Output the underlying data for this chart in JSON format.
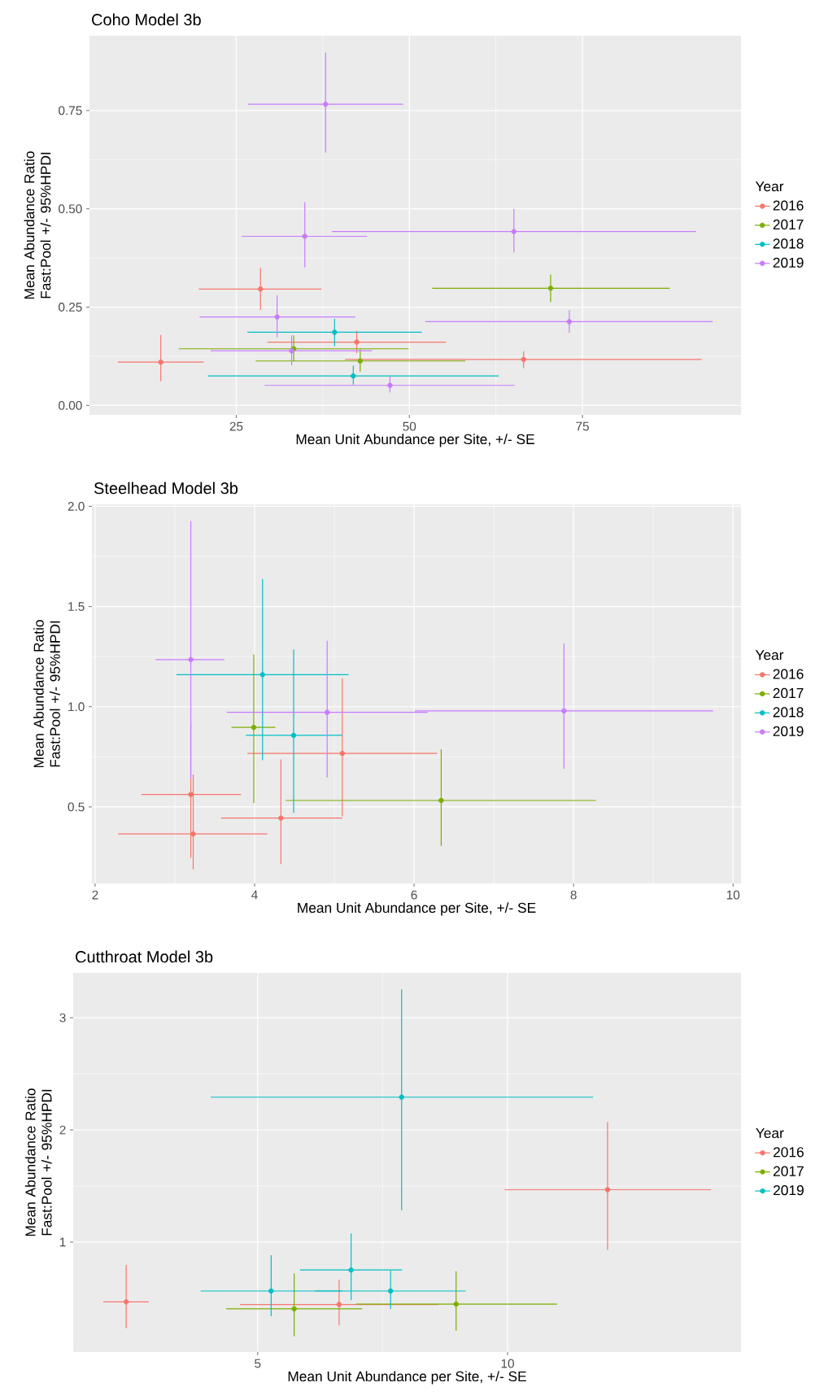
{
  "chart_data": [
    {
      "type": "scatter",
      "title": "Coho Model 3b",
      "xlabel": "Mean Unit Abundance per Site, +/- SE",
      "ylabel": "Mean Abundance Ratio Fast:Pool +/- 95%HPDI",
      "legend_title": "Year",
      "legend": "right",
      "grid": true,
      "marker": "circle",
      "xlim": [
        3.8,
        97.9
      ],
      "ylim": [
        -0.024,
        0.94
      ],
      "xticks": [
        25,
        50,
        75
      ],
      "yticks": [
        {
          "value": 0,
          "label": "0.00"
        },
        {
          "value": 0.25,
          "label": "0.25"
        },
        {
          "value": 0.5,
          "label": "0.50"
        },
        {
          "value": 0.75,
          "label": "0.75"
        }
      ],
      "series": [
        {
          "name": "2016",
          "color": "#f8766d",
          "x": [
            14.1,
            28.5,
            42.4,
            66.5
          ],
          "values": [
            0.11,
            0.296,
            0.161,
            0.117
          ],
          "xerrors": [
            [
              7.9,
              20.3
            ],
            [
              19.6,
              37.3
            ],
            [
              29.5,
              55.3
            ],
            [
              40.7,
              92.2
            ]
          ],
          "errors": [
            [
              0.062,
              0.179
            ],
            [
              0.243,
              0.35
            ],
            [
              0.133,
              0.19
            ],
            [
              0.095,
              0.138
            ]
          ]
        },
        {
          "name": "2017",
          "color": "#7cae00",
          "x": [
            70.4,
            33.3,
            42.9
          ],
          "values": [
            0.298,
            0.144,
            0.113
          ],
          "xerrors": [
            [
              53.3,
              87.6
            ],
            [
              16.7,
              49.9
            ],
            [
              27.8,
              58.1
            ]
          ],
          "errors": [
            [
              0.263,
              0.333
            ],
            [
              0.112,
              0.178
            ],
            [
              0.086,
              0.143
            ]
          ]
        },
        {
          "name": "2018",
          "color": "#00bfc4",
          "x": [
            39.2,
            41.9
          ],
          "values": [
            0.186,
            0.075
          ],
          "xerrors": [
            [
              26.6,
              51.8
            ],
            [
              20.9,
              62.9
            ]
          ],
          "errors": [
            [
              0.151,
              0.22
            ],
            [
              0.053,
              0.101
            ]
          ]
        },
        {
          "name": "2019",
          "color": "#c77cff",
          "x": [
            37.9,
            34.9,
            65.1,
            30.9,
            73.1,
            33.0,
            47.2
          ],
          "values": [
            0.766,
            0.43,
            0.442,
            0.225,
            0.213,
            0.139,
            0.051
          ],
          "xerrors": [
            [
              26.7,
              49.1
            ],
            [
              25.8,
              43.9
            ],
            [
              38.8,
              91.4
            ],
            [
              19.7,
              42.2
            ],
            [
              52.3,
              93.8
            ],
            [
              21.3,
              44.6
            ],
            [
              29.1,
              65.2
            ]
          ],
          "errors": [
            [
              0.643,
              0.897
            ],
            [
              0.351,
              0.517
            ],
            [
              0.389,
              0.5
            ],
            [
              0.173,
              0.28
            ],
            [
              0.185,
              0.242
            ],
            [
              0.102,
              0.178
            ],
            [
              0.033,
              0.074
            ]
          ]
        }
      ]
    },
    {
      "type": "scatter",
      "title": "Steelhead Model 3b",
      "xlabel": "Mean Unit Abundance per Site, +/- SE",
      "ylabel": "Mean Abundance Ratio Fast:Pool +/- 95%HPDI",
      "legend_title": "Year",
      "legend": "right",
      "grid": true,
      "marker": "circle",
      "xlim": [
        1.96,
        10.1
      ],
      "ylim": [
        0.118,
        2.01
      ],
      "xticks": [
        2,
        4,
        6,
        8,
        10
      ],
      "yticks": [
        {
          "value": 0.5,
          "label": "0.5"
        },
        {
          "value": 1,
          "label": "1.0"
        },
        {
          "value": 1.5,
          "label": "1.5"
        },
        {
          "value": 2,
          "label": "2.0"
        }
      ],
      "series": [
        {
          "name": "2016",
          "color": "#f8766d",
          "x": [
            3.2,
            3.23,
            4.33,
            5.1
          ],
          "values": [
            0.562,
            0.365,
            0.444,
            0.767
          ],
          "xerrors": [
            [
              2.58,
              3.83
            ],
            [
              2.29,
              4.16
            ],
            [
              3.58,
              5.1
            ],
            [
              3.91,
              6.29
            ]
          ],
          "errors": [
            [
              0.246,
              0.919
            ],
            [
              0.188,
              0.662
            ],
            [
              0.214,
              0.737
            ],
            [
              0.453,
              1.141
            ]
          ]
        },
        {
          "name": "2017",
          "color": "#7cae00",
          "x": [
            3.99,
            6.34
          ],
          "values": [
            0.897,
            0.532
          ],
          "xerrors": [
            [
              3.71,
              4.26
            ],
            [
              4.39,
              8.28
            ]
          ],
          "errors": [
            [
              0.519,
              1.261
            ],
            [
              0.306,
              0.788
            ]
          ]
        },
        {
          "name": "2018",
          "color": "#00bfc4",
          "x": [
            4.1,
            4.49
          ],
          "values": [
            1.16,
            0.857
          ],
          "xerrors": [
            [
              3.02,
              5.18
            ],
            [
              3.89,
              5.1
            ]
          ],
          "errors": [
            [
              0.733,
              1.637
            ],
            [
              0.47,
              1.286
            ]
          ]
        },
        {
          "name": "2019",
          "color": "#c77cff",
          "x": [
            3.2,
            4.91,
            7.88
          ],
          "values": [
            1.235,
            0.972,
            0.979
          ],
          "xerrors": [
            [
              2.76,
              3.62
            ],
            [
              3.65,
              6.17
            ],
            [
              6.01,
              9.75
            ]
          ],
          "errors": [
            [
              0.641,
              1.927
            ],
            [
              0.647,
              1.329
            ],
            [
              0.69,
              1.316
            ]
          ]
        }
      ]
    },
    {
      "type": "scatter",
      "title": "Cutthroat Model 3b",
      "xlabel": "Mean Unit Abundance per Site, +/- SE",
      "ylabel": "Mean Abundance Ratio Fast:Pool +/- 95%HPDI",
      "legend_title": "Year",
      "legend": "right",
      "grid": true,
      "marker": "circle",
      "xlim": [
        1.31,
        14.67
      ],
      "ylim": [
        0.02,
        3.4
      ],
      "xticks": [
        5,
        10
      ],
      "yticks": [
        1,
        2,
        3
      ],
      "series": [
        {
          "name": "2016",
          "color": "#f8766d",
          "x": [
            2.37,
            6.63,
            12.0
          ],
          "values": [
            0.467,
            0.444,
            1.467
          ],
          "xerrors": [
            [
              1.91,
              2.82
            ],
            [
              4.65,
              8.61
            ],
            [
              9.94,
              14.07
            ]
          ],
          "errors": [
            [
              0.233,
              0.798
            ],
            [
              0.257,
              0.665
            ],
            [
              0.93,
              2.07
            ]
          ]
        },
        {
          "name": "2017",
          "color": "#7cae00",
          "x": [
            5.73,
            8.97
          ],
          "values": [
            0.405,
            0.447
          ],
          "xerrors": [
            [
              4.37,
              7.09
            ],
            [
              6.97,
              10.99
            ]
          ],
          "errors": [
            [
              0.16,
              0.72
            ],
            [
              0.21,
              0.739
            ]
          ]
        },
        {
          "name": "2019",
          "color": "#00bfc4",
          "x": [
            7.88,
            5.27,
            6.87,
            7.66
          ],
          "values": [
            2.292,
            0.564,
            0.751,
            0.564
          ],
          "xerrors": [
            [
              4.06,
              11.71
            ],
            [
              3.86,
              6.69
            ],
            [
              5.85,
              7.89
            ],
            [
              6.15,
              9.16
            ]
          ],
          "errors": [
            [
              1.284,
              3.253
            ],
            [
              0.339,
              0.883
            ],
            [
              0.482,
              1.078
            ],
            [
              0.405,
              0.743
            ]
          ]
        }
      ]
    }
  ]
}
